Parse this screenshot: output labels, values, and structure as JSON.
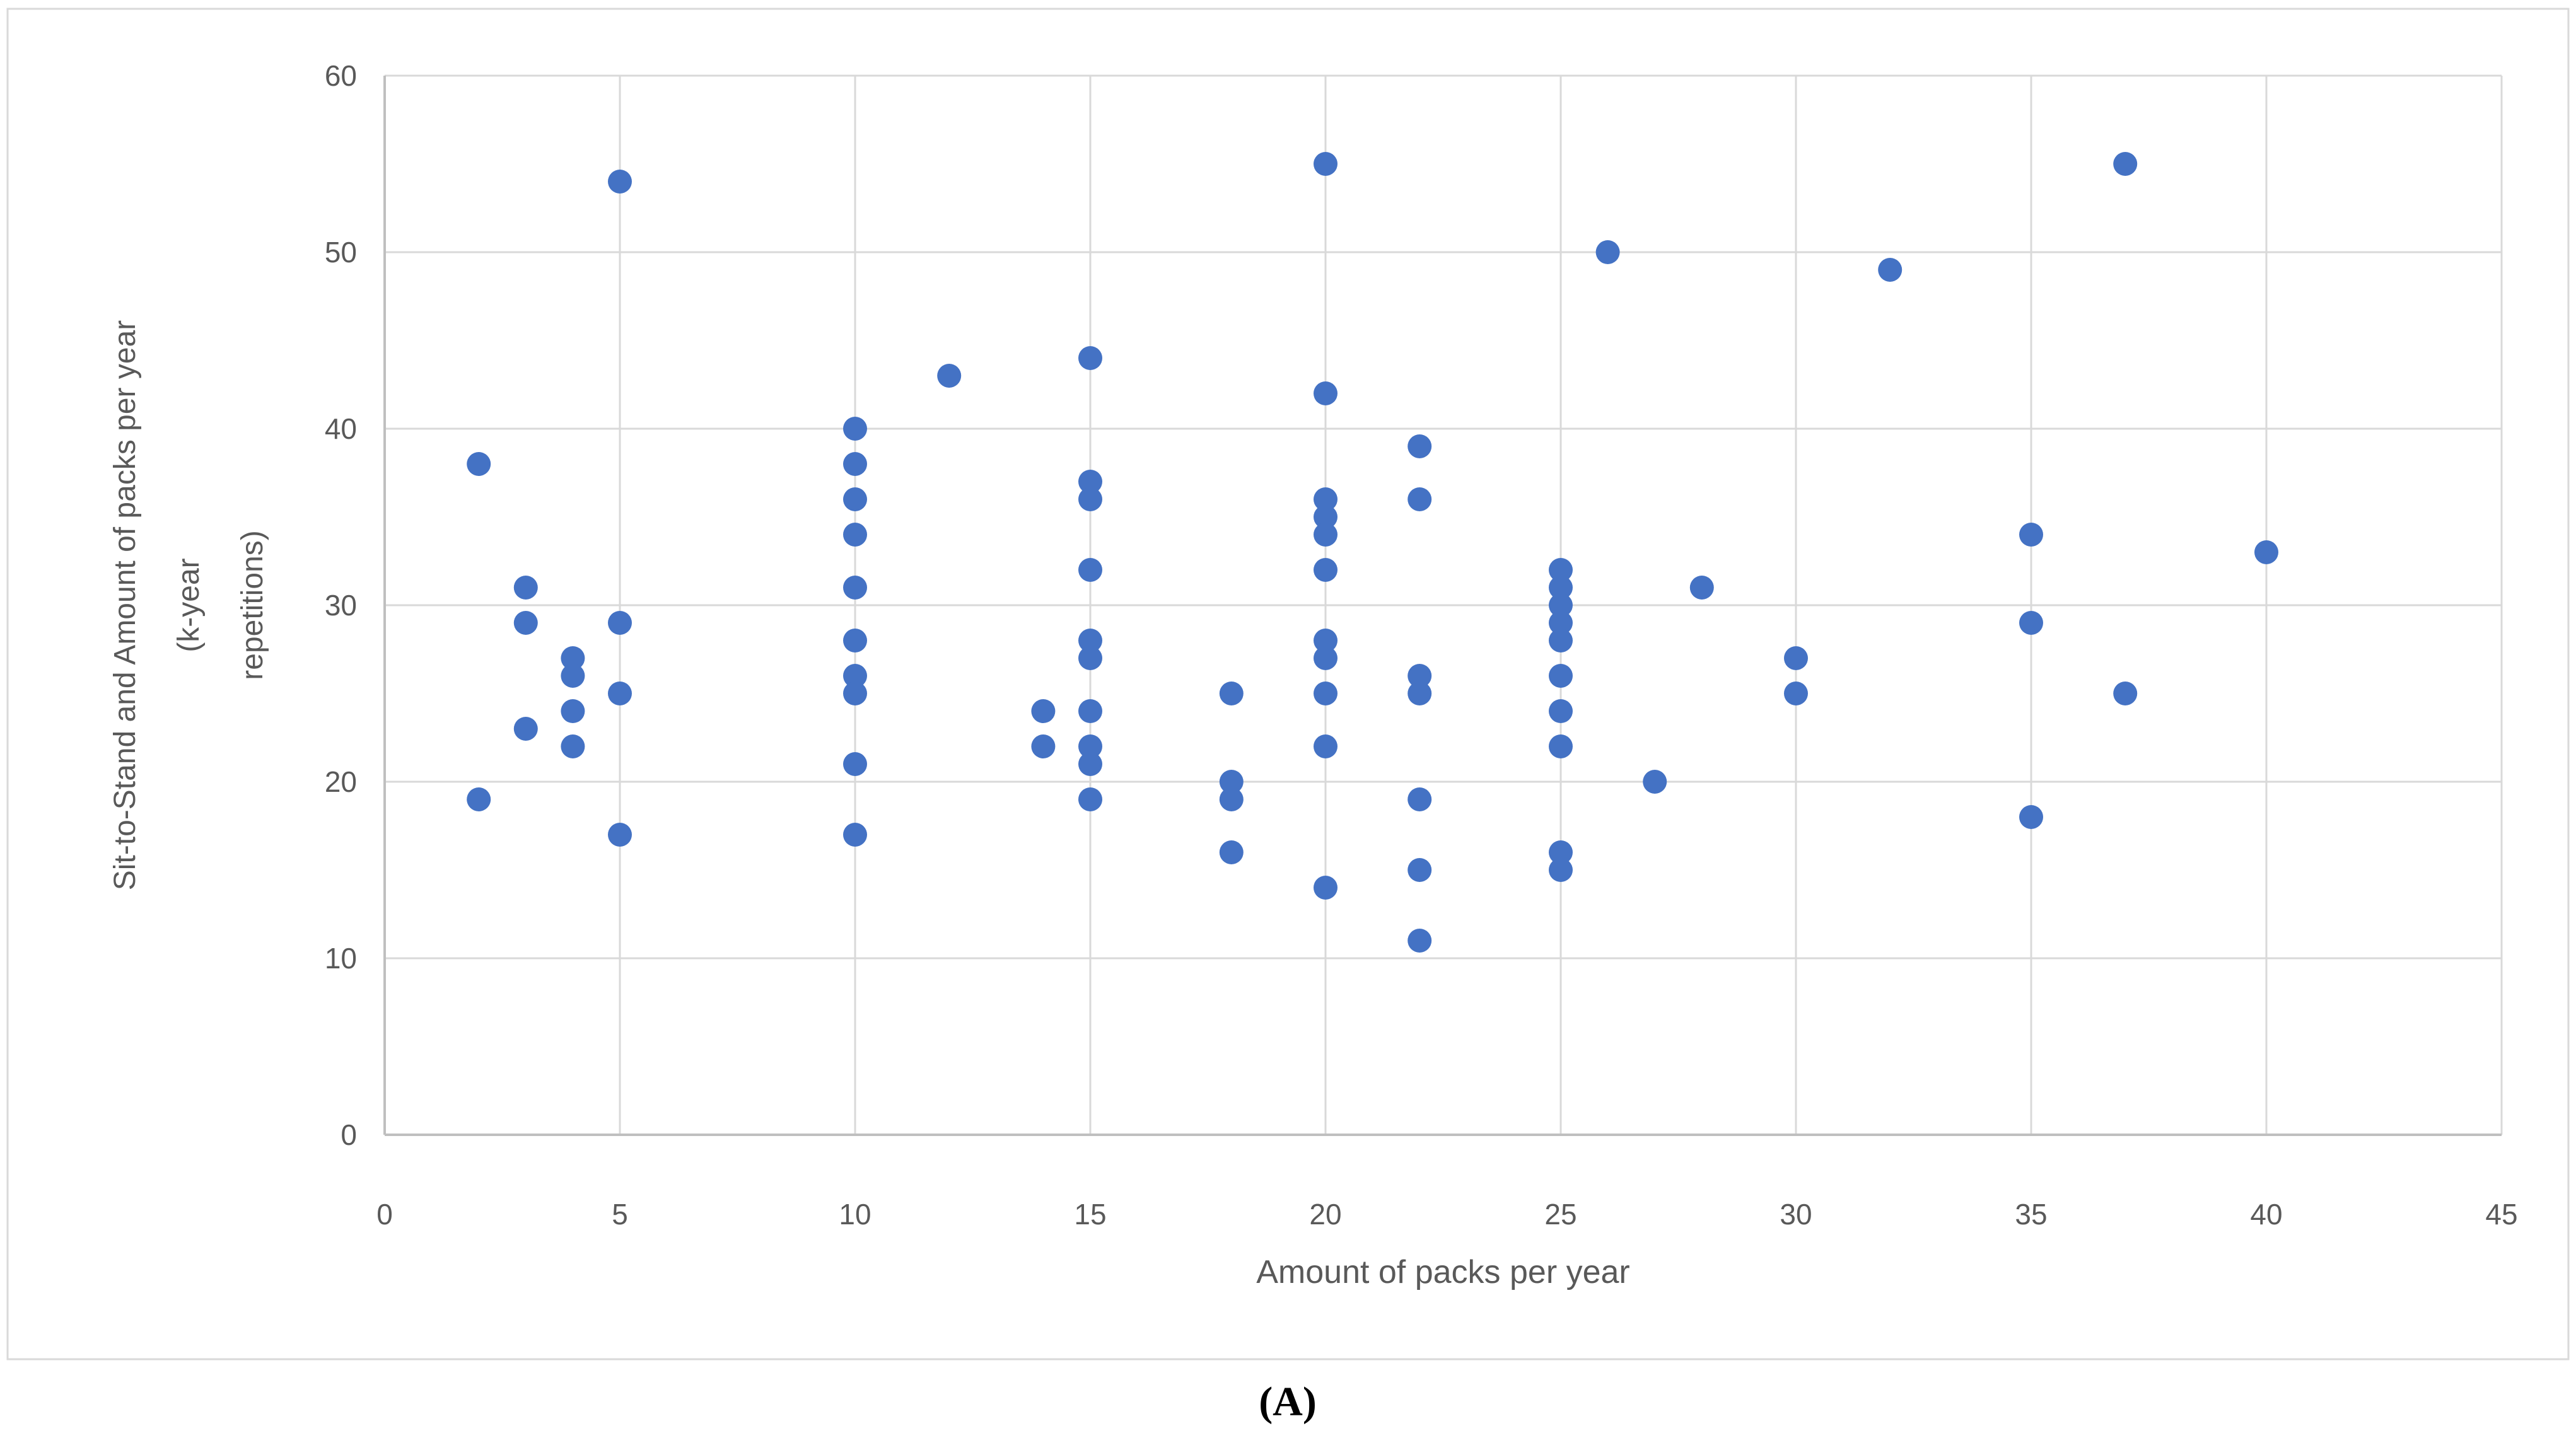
{
  "figure": {
    "caption": "(A)"
  },
  "chart_data": {
    "type": "scatter",
    "title": "",
    "xlabel": "Amount of packs per year",
    "ylabel": "Sit-to-Stand and Amount of packs per year (k-year repetitions)",
    "ylabel_lines": [
      "Sit-to-Stand and Amount of packs per year",
      "(k-year",
      "repetitions)"
    ],
    "xlim": [
      0,
      45
    ],
    "ylim": [
      0,
      60
    ],
    "xticks": [
      0,
      5,
      10,
      15,
      20,
      25,
      30,
      35,
      40,
      45
    ],
    "yticks": [
      0,
      10,
      20,
      30,
      40,
      50,
      60
    ],
    "grid": true,
    "legend": false,
    "marker_color": "#4472C4",
    "grid_color": "#D9D9D9",
    "axis_color": "#BFBFBF",
    "text_color": "#595959",
    "border_color": "#D9D9D9",
    "caption_color": "#000000",
    "points": [
      [
        2,
        38
      ],
      [
        2,
        19
      ],
      [
        3,
        31
      ],
      [
        3,
        29
      ],
      [
        3,
        23
      ],
      [
        4,
        27
      ],
      [
        4,
        26
      ],
      [
        4,
        24
      ],
      [
        4,
        22
      ],
      [
        5,
        54
      ],
      [
        5,
        29
      ],
      [
        5,
        25
      ],
      [
        5,
        17
      ],
      [
        10,
        40
      ],
      [
        10,
        38
      ],
      [
        10,
        36
      ],
      [
        10,
        34
      ],
      [
        10,
        31
      ],
      [
        10,
        28
      ],
      [
        10,
        26
      ],
      [
        10,
        25
      ],
      [
        10,
        21
      ],
      [
        10,
        17
      ],
      [
        12,
        43
      ],
      [
        14,
        24
      ],
      [
        14,
        22
      ],
      [
        15,
        44
      ],
      [
        15,
        37
      ],
      [
        15,
        36
      ],
      [
        15,
        32
      ],
      [
        15,
        28
      ],
      [
        15,
        27
      ],
      [
        15,
        24
      ],
      [
        15,
        22
      ],
      [
        15,
        21
      ],
      [
        15,
        19
      ],
      [
        18,
        25
      ],
      [
        18,
        20
      ],
      [
        18,
        19
      ],
      [
        18,
        16
      ],
      [
        20,
        55
      ],
      [
        20,
        42
      ],
      [
        20,
        36
      ],
      [
        20,
        35
      ],
      [
        20,
        34
      ],
      [
        20,
        32
      ],
      [
        20,
        28
      ],
      [
        20,
        27
      ],
      [
        20,
        25
      ],
      [
        20,
        22
      ],
      [
        20,
        14
      ],
      [
        22,
        39
      ],
      [
        22,
        36
      ],
      [
        22,
        26
      ],
      [
        22,
        25
      ],
      [
        22,
        19
      ],
      [
        22,
        15
      ],
      [
        22,
        11
      ],
      [
        25,
        32
      ],
      [
        25,
        31
      ],
      [
        25,
        30
      ],
      [
        25,
        29
      ],
      [
        25,
        28
      ],
      [
        25,
        26
      ],
      [
        25,
        24
      ],
      [
        25,
        22
      ],
      [
        25,
        16
      ],
      [
        25,
        15
      ],
      [
        26,
        50
      ],
      [
        27,
        20
      ],
      [
        28,
        31
      ],
      [
        30,
        27
      ],
      [
        30,
        25
      ],
      [
        32,
        49
      ],
      [
        35,
        34
      ],
      [
        35,
        29
      ],
      [
        35,
        18
      ],
      [
        37,
        55
      ],
      [
        37,
        25
      ],
      [
        40,
        33
      ]
    ]
  }
}
